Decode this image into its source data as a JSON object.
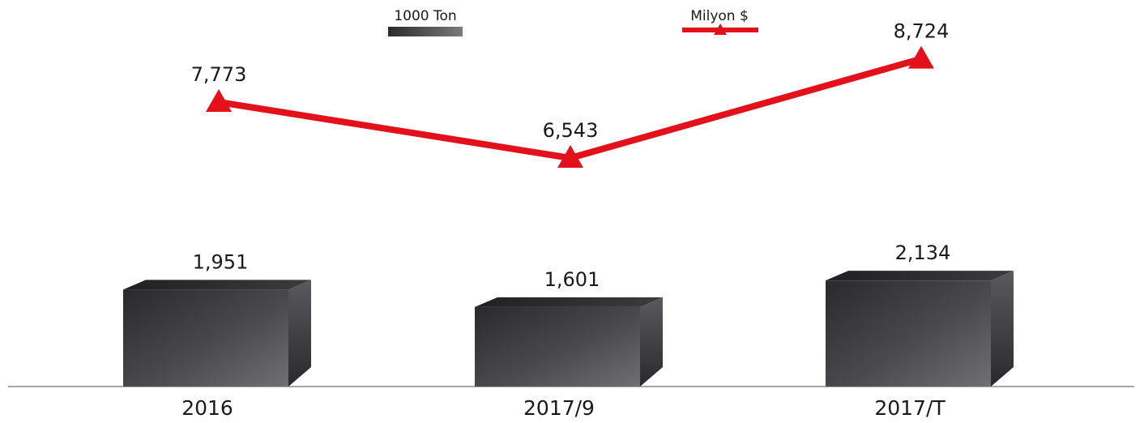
{
  "chart_data": {
    "type": "bar",
    "categories": [
      "2016",
      "2017/9",
      "2017/T"
    ],
    "series": [
      {
        "name": "1000 Ton",
        "type": "bar",
        "values": [
          1951,
          1601,
          2134
        ],
        "labels": [
          "1,951",
          "1,601",
          "2,134"
        ],
        "color": "#3c3c3e"
      },
      {
        "name": "Milyon $",
        "type": "line",
        "marker": "triangle",
        "values": [
          7773,
          6543,
          8724
        ],
        "labels": [
          "7,773",
          "6,543",
          "8,724"
        ],
        "color": "#e3111b"
      }
    ],
    "legend_position": "top",
    "grid": false,
    "bar_3d": true
  }
}
